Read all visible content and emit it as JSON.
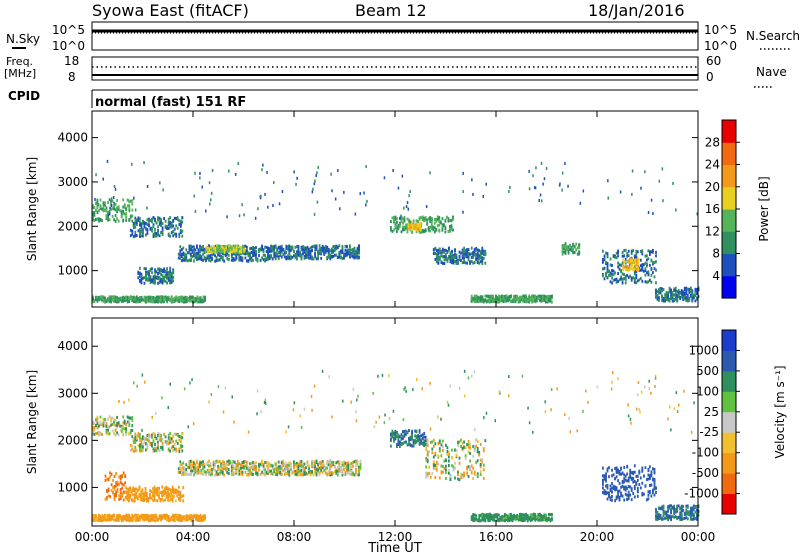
{
  "header": {
    "station": "Syowa East (fitACF)",
    "beam": "Beam 12",
    "date": "18/Jan/2016"
  },
  "top_panels": {
    "nsky_label": "N.Sky",
    "nsky_ticks": [
      "10^5",
      "10^0"
    ],
    "nsearch_label": "N.Search",
    "nsearch_ticks": [
      "10^5",
      "10^0"
    ],
    "freq_label": "Freq.",
    "freq_unit": "[MHz]",
    "freq_ticks": [
      "18",
      "8"
    ],
    "nave_label": "Nave",
    "nave_ticks": [
      "60",
      "0"
    ],
    "cpid_label": "CPID",
    "cpid_text": "normal (fast) 151 RF"
  },
  "chart_data": [
    {
      "type": "heatmap",
      "panel": "power",
      "ylabel": "Slant Range [km]",
      "yticks": [
        "1000",
        "2000",
        "3000",
        "4000"
      ],
      "ylim": [
        180,
        4600
      ],
      "xlabel": "",
      "xticks": [
        "00:00",
        "04:00",
        "08:00",
        "12:00",
        "16:00",
        "20:00",
        "00:00"
      ],
      "xlim_hours": [
        0,
        24
      ],
      "colorbar": {
        "label": "Power [dB]",
        "tick_labels": [
          "4",
          "8",
          "12",
          "16",
          "20",
          "24",
          "28"
        ],
        "range": [
          0,
          30
        ],
        "colors": [
          "#0000ee",
          "#1f4fbf",
          "#2f8f5f",
          "#55b35a",
          "#e8d020",
          "#f39a1a",
          "#f26a0f",
          "#e80000"
        ]
      },
      "echo_regions": [
        {
          "t_start": 0.0,
          "t_end": 1.6,
          "range_low": 2100,
          "range_high": 2600,
          "level": 12
        },
        {
          "t_start": 1.5,
          "t_end": 3.6,
          "range_low": 1750,
          "range_high": 2200,
          "level": 8
        },
        {
          "t_start": 3.4,
          "t_end": 7.0,
          "range_low": 1200,
          "range_high": 1550,
          "level": 8
        },
        {
          "t_start": 4.5,
          "t_end": 6.0,
          "range_low": 1400,
          "range_high": 1550,
          "level": 16
        },
        {
          "t_start": 7.0,
          "t_end": 10.6,
          "range_low": 1250,
          "range_high": 1550,
          "level": 8
        },
        {
          "t_start": 11.8,
          "t_end": 14.3,
          "range_low": 1850,
          "range_high": 2200,
          "level": 12
        },
        {
          "t_start": 12.5,
          "t_end": 13.0,
          "range_low": 1900,
          "range_high": 2050,
          "level": 20
        },
        {
          "t_start": 13.5,
          "t_end": 15.6,
          "range_low": 1150,
          "range_high": 1500,
          "level": 8
        },
        {
          "t_start": 1.8,
          "t_end": 3.2,
          "range_low": 700,
          "range_high": 1050,
          "level": 8
        },
        {
          "t_start": 18.6,
          "t_end": 19.3,
          "range_low": 1350,
          "range_high": 1600,
          "level": 12
        },
        {
          "t_start": 20.2,
          "t_end": 22.3,
          "range_low": 700,
          "range_high": 1450,
          "level": 8
        },
        {
          "t_start": 21.0,
          "t_end": 21.6,
          "range_low": 1000,
          "range_high": 1250,
          "level": 20
        },
        {
          "t_start": 22.3,
          "t_end": 24.0,
          "range_low": 300,
          "range_high": 600,
          "level": 8
        },
        {
          "t_start": 15.0,
          "t_end": 18.2,
          "range_low": 280,
          "range_high": 420,
          "level": 12
        },
        {
          "t_start": 0.0,
          "t_end": 4.5,
          "range_low": 280,
          "range_high": 400,
          "level": 12
        }
      ]
    },
    {
      "type": "heatmap",
      "panel": "velocity",
      "ylabel": "Slant Range [km]",
      "yticks": [
        "1000",
        "2000",
        "3000",
        "4000"
      ],
      "ylim": [
        180,
        4600
      ],
      "xlabel": "Time UT",
      "xticks": [
        "00:00",
        "04:00",
        "08:00",
        "12:00",
        "16:00",
        "20:00",
        "00:00"
      ],
      "xlim_hours": [
        0,
        24
      ],
      "colorbar": {
        "label": "Velocity [m s⁻¹]",
        "tick_labels": [
          "1000",
          "500",
          "100",
          "25",
          "-25",
          "-100",
          "-500",
          "-1000"
        ],
        "colors": [
          "#1c3ccc",
          "#2b5bb0",
          "#2f8f5f",
          "#60c040",
          "#c8c8c8",
          "#f0c030",
          "#f39a1a",
          "#f26a0f",
          "#e80000"
        ]
      },
      "echo_regions": [
        {
          "t_start": 0.0,
          "t_end": 1.6,
          "range_low": 2100,
          "range_high": 2500,
          "vel": 0
        },
        {
          "t_start": 1.5,
          "t_end": 3.6,
          "range_low": 1750,
          "range_high": 2150,
          "vel": 0
        },
        {
          "t_start": 3.4,
          "t_end": 10.6,
          "range_low": 1250,
          "range_high": 1550,
          "vel": 0
        },
        {
          "t_start": 11.8,
          "t_end": 13.2,
          "range_low": 1850,
          "range_high": 2200,
          "vel": 300
        },
        {
          "t_start": 13.2,
          "t_end": 15.6,
          "range_low": 1150,
          "range_high": 2000,
          "vel": 0
        },
        {
          "t_start": 0.5,
          "t_end": 1.3,
          "range_low": 700,
          "range_high": 1300,
          "vel": -300
        },
        {
          "t_start": 1.3,
          "t_end": 3.6,
          "range_low": 700,
          "range_high": 1000,
          "vel": -150
        },
        {
          "t_start": 20.2,
          "t_end": 22.3,
          "range_low": 700,
          "range_high": 1450,
          "vel": 500
        },
        {
          "t_start": 22.3,
          "t_end": 24.0,
          "range_low": 300,
          "range_high": 600,
          "vel": 300
        },
        {
          "t_start": 15.0,
          "t_end": 18.2,
          "range_low": 280,
          "range_high": 420,
          "vel": 150
        },
        {
          "t_start": 0.0,
          "t_end": 4.5,
          "range_low": 280,
          "range_high": 400,
          "vel": -150
        }
      ]
    }
  ]
}
